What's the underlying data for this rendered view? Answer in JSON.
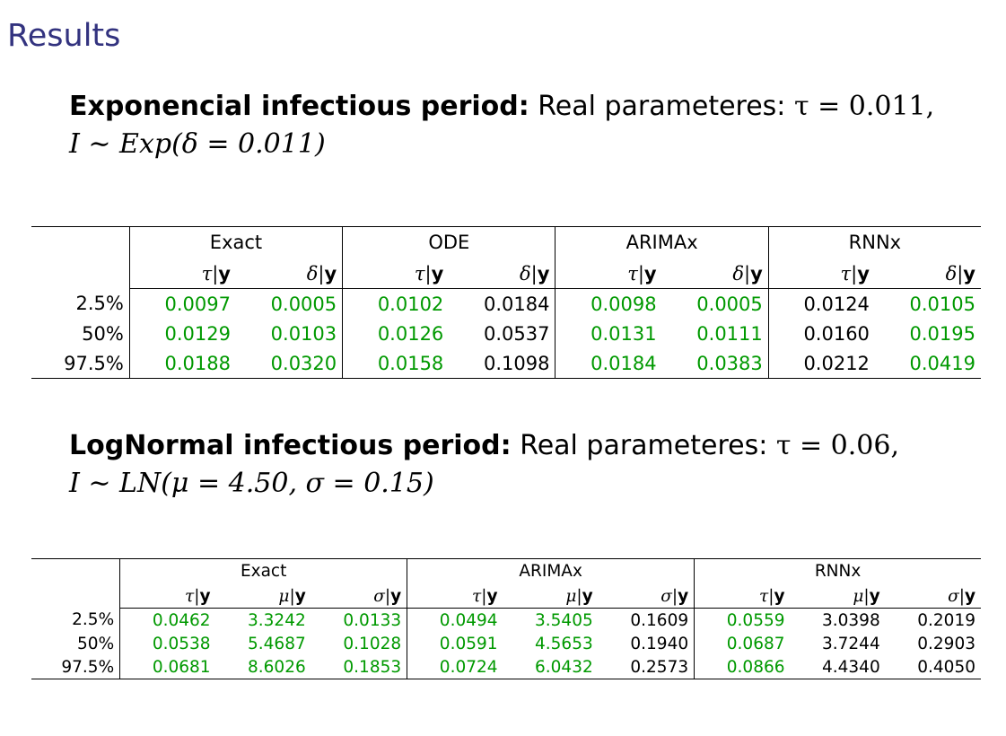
{
  "title": "Results",
  "section1": {
    "heading": "Exponencial infectious period:",
    "text": "Real parameteres:",
    "tau_eq": "τ = 0.011,",
    "dist": "I ∼ Exp(δ = 0.011)"
  },
  "table1": {
    "groups": [
      "Exact",
      "ODE",
      "ARIMAx",
      "RNNx"
    ],
    "subheaders": [
      "τ|y",
      "δ|y"
    ],
    "rows": [
      {
        "label": "2.5%",
        "values": [
          "0.0097",
          "0.0005",
          "0.0102",
          "0.0184",
          "0.0098",
          "0.0005",
          "0.0124",
          "0.0105"
        ]
      },
      {
        "label": "50%",
        "values": [
          "0.0129",
          "0.0103",
          "0.0126",
          "0.0537",
          "0.0131",
          "0.0111",
          "0.0160",
          "0.0195"
        ]
      },
      {
        "label": "97.5%",
        "values": [
          "0.0188",
          "0.0320",
          "0.0158",
          "0.1098",
          "0.0184",
          "0.0383",
          "0.0212",
          "0.0419"
        ]
      }
    ],
    "green_cols": [
      0,
      1,
      2,
      4,
      5,
      7
    ],
    "green_color": "#009900"
  },
  "section2": {
    "heading": "LogNormal infectious period:",
    "text": "Real parameteres:",
    "tau_eq": "τ = 0.06,",
    "dist": "I ∼ LN(μ = 4.50, σ = 0.15)"
  },
  "table2": {
    "groups": [
      "Exact",
      "ARIMAx",
      "RNNx"
    ],
    "subheaders": [
      "τ|y",
      "μ|y",
      "σ|y"
    ],
    "rows": [
      {
        "label": "2.5%",
        "values": [
          "0.0462",
          "3.3242",
          "0.0133",
          "0.0494",
          "3.5405",
          "0.1609",
          "0.0559",
          "3.0398",
          "0.2019"
        ]
      },
      {
        "label": "50%",
        "values": [
          "0.0538",
          "5.4687",
          "0.1028",
          "0.0591",
          "4.5653",
          "0.1940",
          "0.0687",
          "3.7244",
          "0.2903"
        ]
      },
      {
        "label": "97.5%",
        "values": [
          "0.0681",
          "8.6026",
          "0.1853",
          "0.0724",
          "6.0432",
          "0.2573",
          "0.0866",
          "4.4340",
          "0.4050"
        ]
      }
    ],
    "green_cols": [
      0,
      1,
      2,
      3,
      4,
      6
    ],
    "green_color": "#009900"
  }
}
